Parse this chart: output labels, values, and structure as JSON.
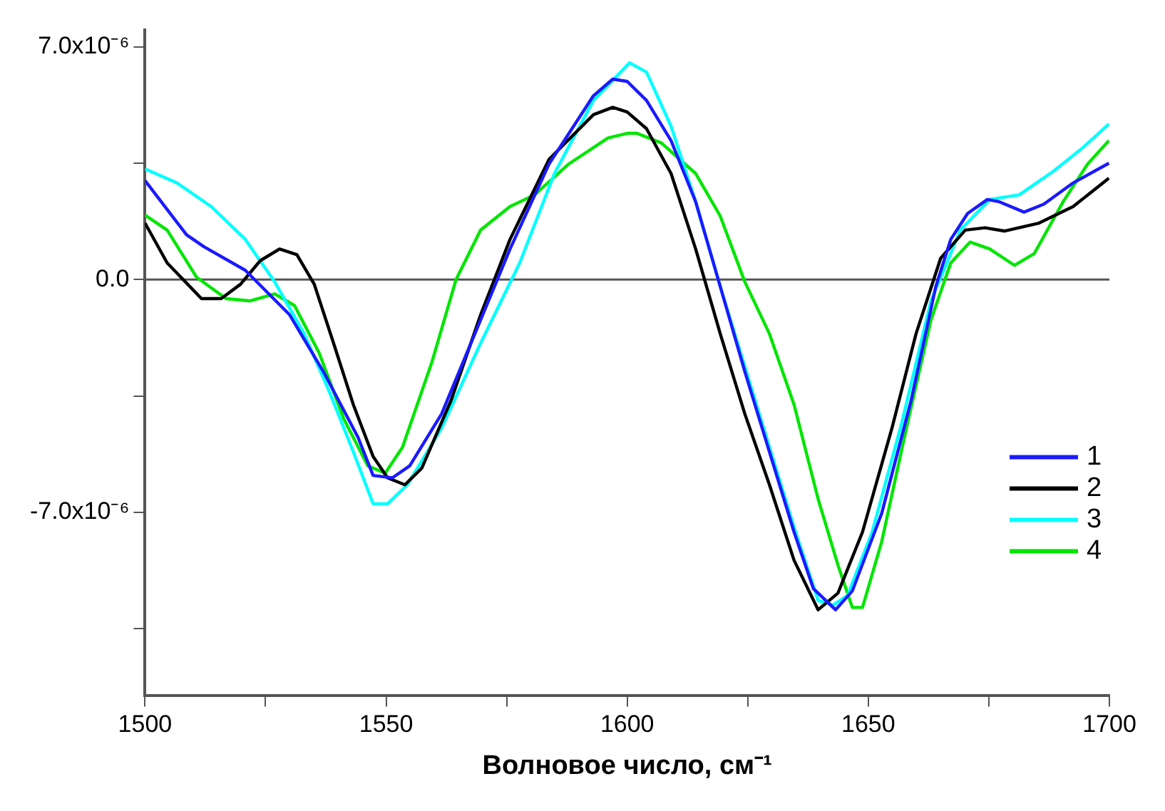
{
  "chart_data": {
    "type": "line",
    "xlabel": "Волновое число, см⁻¹",
    "xlim": [
      1500,
      1700
    ],
    "xticks": [
      1500,
      {
        "value": 1525,
        "label": null
      },
      1550,
      {
        "value": 1575,
        "label": null
      },
      1600,
      {
        "value": 1625,
        "label": null
      },
      1650,
      {
        "value": 1675,
        "label": null
      },
      1700
    ],
    "ylim": [
      -1.25e-05,
      7.5e-06
    ],
    "yticks": [
      {
        "value": 7e-06,
        "label": "7.0x10⁻⁶"
      },
      {
        "value": 3.5e-06,
        "label": null
      },
      {
        "value": 0,
        "label": "0.0"
      },
      {
        "value": -3.5e-06,
        "label": null
      },
      {
        "value": -7e-06,
        "label": "-7.0x10⁻⁶"
      },
      {
        "value": -1.05e-05,
        "label": null
      }
    ],
    "grid": false,
    "legend": "bottom right",
    "marker": "none",
    "line_style": "solid",
    "ref_lines": [
      {
        "axis": "y",
        "value": 0,
        "color": "#555555"
      }
    ],
    "series": [
      {
        "name": "1",
        "color": "#1a1aff",
        "x": [
          1500,
          1508.6,
          1512.2,
          1520.8,
          1530,
          1537,
          1544.2,
          1547.3,
          1551.3,
          1554.9,
          1561.5,
          1569.6,
          1575.7,
          1583.8,
          1593,
          1597,
          1600,
          1604,
          1609.1,
          1614.2,
          1619.3,
          1624.4,
          1629.5,
          1634.6,
          1638.6,
          1643.2,
          1646.7,
          1652.8,
          1658.9,
          1664,
          1667.1,
          1670.6,
          1674.7,
          1677.2,
          1682.3,
          1686.4,
          1692.5,
          1699.9
        ],
        "values": [
          2.98e-06,
          1.35e-06,
          9.9e-07,
          2.8e-07,
          -1.06e-06,
          -2.77e-06,
          -4.75e-06,
          -5.89e-06,
          -5.96e-06,
          -5.6e-06,
          -4.04e-06,
          -1.21e-06,
          9.2e-07,
          3.48e-06,
          5.53e-06,
          6.03e-06,
          5.96e-06,
          5.39e-06,
          4.18e-06,
          2.34e-06,
          -2.1e-07,
          -2.77e-06,
          -5.18e-06,
          -7.59e-06,
          -9.29e-06,
          -9.93e-06,
          -9.36e-06,
          -7.02e-06,
          -3.62e-06,
          -2.1e-07,
          1.21e-06,
          1.99e-06,
          2.41e-06,
          2.34e-06,
          2.03e-06,
          2.27e-06,
          2.91e-06,
          3.5e-06
        ]
      },
      {
        "name": "2",
        "color": "#000000",
        "x": [
          1500,
          1504.6,
          1511.7,
          1515.8,
          1519.8,
          1523.9,
          1527.9,
          1531.5,
          1535.1,
          1539.1,
          1543.2,
          1547.3,
          1550.3,
          1553.9,
          1557.4,
          1563.5,
          1569.6,
          1575.7,
          1583.8,
          1593,
          1597,
          1600,
          1604,
          1609.1,
          1614.2,
          1619.3,
          1624.4,
          1629.5,
          1634.6,
          1639.6,
          1643.7,
          1648.8,
          1654.9,
          1659.9,
          1665,
          1670.1,
          1674.2,
          1678.3,
          1685.4,
          1692.5,
          1699.9
        ],
        "values": [
          1.7e-06,
          5e-07,
          -5.7e-07,
          -5.7e-07,
          -1.4e-07,
          5.7e-07,
          9.2e-07,
          7.5e-07,
          -1.4e-07,
          -1.91e-06,
          -3.76e-06,
          -5.32e-06,
          -5.96e-06,
          -6.17e-06,
          -5.67e-06,
          -3.62e-06,
          -1.06e-06,
          1.21e-06,
          3.62e-06,
          4.96e-06,
          5.18e-06,
          5.04e-06,
          4.54e-06,
          3.19e-06,
          9.2e-07,
          -1.63e-06,
          -4.04e-06,
          -6.17e-06,
          -8.44e-06,
          -9.93e-06,
          -9.43e-06,
          -7.59e-06,
          -4.47e-06,
          -1.63e-06,
          6.4e-07,
          1.49e-06,
          1.56e-06,
          1.46e-06,
          1.7e-06,
          2.2e-06,
          3.05e-06
        ]
      },
      {
        "name": "3",
        "color": "#00ffff",
        "x": [
          1500,
          1506.6,
          1513.7,
          1520.8,
          1526.9,
          1533,
          1538.1,
          1543.2,
          1547.3,
          1550.3,
          1554.4,
          1561.5,
          1569.6,
          1577.7,
          1584.9,
          1593,
          1600.5,
          1604,
          1609.1,
          1614.2,
          1619.3,
          1624.4,
          1629.5,
          1634.6,
          1639.6,
          1642.7,
          1645.7,
          1650.8,
          1656.9,
          1663,
          1669.1,
          1675.2,
          1681.3,
          1688.4,
          1694.5,
          1699.9
        ],
        "values": [
          3.33e-06,
          2.91e-06,
          2.2e-06,
          1.21e-06,
          -7e-08,
          -1.63e-06,
          -3.33e-06,
          -5.18e-06,
          -6.74e-06,
          -6.74e-06,
          -6.17e-06,
          -4.47e-06,
          -1.91e-06,
          5e-07,
          3.19e-06,
          5.39e-06,
          6.52e-06,
          6.24e-06,
          4.61e-06,
          2.34e-06,
          -2.1e-07,
          -2.62e-06,
          -5.04e-06,
          -7.45e-06,
          -9.65e-06,
          -9.79e-06,
          -9.5e-06,
          -7.59e-06,
          -4.33e-06,
          -6.4e-07,
          1.49e-06,
          2.41e-06,
          2.55e-06,
          3.26e-06,
          3.97e-06,
          4.68e-06
        ]
      },
      {
        "name": "4",
        "color": "#00e600",
        "x": [
          1500,
          1504.6,
          1510.7,
          1516.8,
          1521.8,
          1526.9,
          1531,
          1536.1,
          1541.2,
          1546.2,
          1549.8,
          1553.4,
          1559.5,
          1564.5,
          1569.6,
          1575.7,
          1580.8,
          1587.9,
          1596,
          1600,
          1602,
          1607.1,
          1614.2,
          1619.3,
          1624.4,
          1629.5,
          1634.6,
          1639.6,
          1643.7,
          1646.7,
          1648.8,
          1652.8,
          1657.9,
          1663,
          1667.1,
          1671.1,
          1675.2,
          1680.3,
          1684.4,
          1690.4,
          1695.5,
          1699.9
        ],
        "values": [
          1.94e-06,
          1.49e-06,
          7e-08,
          -5.7e-07,
          -6.4e-07,
          -4.3e-07,
          -7.8e-07,
          -2.2e-06,
          -4.18e-06,
          -5.6e-06,
          -5.82e-06,
          -5.04e-06,
          -2.48e-06,
          0,
          1.49e-06,
          2.2e-06,
          2.55e-06,
          3.48e-06,
          4.26e-06,
          4.4e-06,
          4.4e-06,
          4.11e-06,
          3.19e-06,
          1.91e-06,
          -7e-08,
          -1.63e-06,
          -3.76e-06,
          -6.6e-06,
          -8.58e-06,
          -9.86e-06,
          -9.86e-06,
          -7.87e-06,
          -4.47e-06,
          -1.21e-06,
          5e-07,
          1.13e-06,
          9.2e-07,
          4.3e-07,
          7.8e-07,
          2.34e-06,
          3.48e-06,
          4.18e-06
        ]
      }
    ]
  }
}
